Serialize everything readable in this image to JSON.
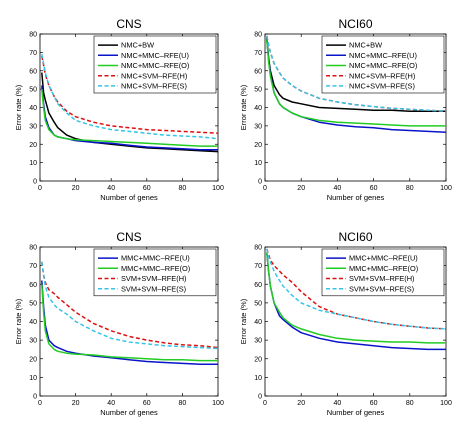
{
  "chart_data": [
    {
      "type": "line",
      "title": "CNS",
      "xlabel": "Number of genes",
      "ylabel": "Error rate (%)",
      "xlim": [
        0,
        100
      ],
      "ylim": [
        0,
        80
      ],
      "xticks": [
        "0",
        "20",
        "40",
        "60",
        "80",
        "100"
      ],
      "yticks": [
        "0",
        "10",
        "20",
        "30",
        "40",
        "50",
        "60",
        "70",
        "80"
      ],
      "legend_position": "top-right",
      "x": [
        1,
        2,
        3,
        5,
        8,
        10,
        15,
        20,
        30,
        40,
        50,
        60,
        70,
        80,
        90,
        100
      ],
      "series": [
        {
          "name": "NMC+BW",
          "color": "#000000",
          "dash": "solid",
          "values": [
            59,
            48,
            44,
            37,
            32,
            29,
            25,
            23,
            21,
            20,
            19,
            18,
            17.5,
            17,
            16.5,
            16
          ]
        },
        {
          "name": "NMC+MMC–RFE(U)",
          "color": "#0a14c8",
          "dash": "solid",
          "values": [
            52,
            42,
            35,
            29,
            25,
            24,
            23,
            22,
            21,
            20.5,
            19.5,
            18.5,
            18,
            17.5,
            17,
            17
          ]
        },
        {
          "name": "NMC+MMC–RFE(O)",
          "color": "#22cc22",
          "dash": "solid",
          "values": [
            50,
            40,
            33,
            28,
            25,
            24,
            23,
            22.5,
            22,
            21.5,
            21,
            20.5,
            20,
            19.5,
            19,
            19
          ]
        },
        {
          "name": "NMC+SVM–RFE(H)",
          "color": "#dd1111",
          "dash": "dashed",
          "values": [
            68,
            63,
            58,
            52,
            46,
            43,
            38,
            35,
            32,
            30,
            29,
            28,
            27.5,
            27,
            26.5,
            26
          ]
        },
        {
          "name": "NMC+SVM–RFE(S)",
          "color": "#33c5e8",
          "dash": "dashed",
          "values": [
            69,
            64,
            59,
            52,
            46,
            42,
            37,
            33,
            30,
            28,
            27,
            26,
            25,
            24.5,
            24,
            23
          ]
        }
      ]
    },
    {
      "type": "line",
      "title": "NCI60",
      "xlabel": "Number of genes",
      "ylabel": "Error rate (%)",
      "xlim": [
        0,
        100
      ],
      "ylim": [
        0,
        80
      ],
      "xticks": [
        "0",
        "20",
        "40",
        "60",
        "80",
        "100"
      ],
      "yticks": [
        "0",
        "10",
        "20",
        "30",
        "40",
        "50",
        "60",
        "70",
        "80"
      ],
      "legend_position": "top-right",
      "x": [
        1,
        2,
        3,
        5,
        8,
        10,
        15,
        20,
        30,
        40,
        50,
        60,
        70,
        80,
        90,
        100
      ],
      "series": [
        {
          "name": "NMC+BW",
          "color": "#000000",
          "dash": "solid",
          "values": [
            78,
            67,
            60,
            52,
            47,
            45,
            43,
            42,
            40,
            39.5,
            39,
            38.5,
            38.5,
            38,
            38,
            38
          ]
        },
        {
          "name": "NMC+MMC–RFE(U)",
          "color": "#0a14c8",
          "dash": "solid",
          "values": [
            77,
            66,
            58,
            48,
            42,
            40,
            37,
            35,
            32,
            30.5,
            29.5,
            29,
            28,
            27.5,
            27,
            26.5
          ]
        },
        {
          "name": "NMC+MMC–RFE(O)",
          "color": "#22cc22",
          "dash": "solid",
          "values": [
            77,
            65,
            57,
            48,
            42,
            40,
            37,
            35,
            33,
            32,
            31.5,
            31,
            30.5,
            30,
            30,
            30
          ]
        },
        {
          "name": "NMC+SVM–RFE(H)",
          "color": "#dd1111",
          "dash": "dashed",
          "values": [
            79,
            74,
            70,
            64,
            59,
            56,
            52,
            49,
            45,
            43,
            41.5,
            40.5,
            39.5,
            39,
            38.5,
            38
          ]
        },
        {
          "name": "NMC+SVM–RFE(S)",
          "color": "#33c5e8",
          "dash": "dashed",
          "values": [
            79,
            74,
            70,
            64,
            59,
            56,
            52,
            49,
            45,
            43,
            41.5,
            40.5,
            39.5,
            39,
            38.5,
            38
          ]
        }
      ]
    },
    {
      "type": "line",
      "title": "CNS",
      "xlabel": "Number of genes",
      "ylabel": "Error rate (%)",
      "xlim": [
        0,
        100
      ],
      "ylim": [
        0,
        80
      ],
      "xticks": [
        "0",
        "20",
        "40",
        "60",
        "80",
        "100"
      ],
      "yticks": [
        "0",
        "10",
        "20",
        "30",
        "40",
        "50",
        "60",
        "70",
        "80"
      ],
      "legend_position": "top-right",
      "x": [
        1,
        2,
        3,
        5,
        8,
        10,
        15,
        20,
        30,
        40,
        50,
        60,
        70,
        80,
        90,
        100
      ],
      "series": [
        {
          "name": "MMC+MMC–RFE(U)",
          "color": "#0a14c8",
          "dash": "solid",
          "values": [
            62,
            48,
            38,
            30,
            27,
            26,
            24,
            23,
            21.5,
            20.5,
            19.5,
            18.5,
            18,
            17.5,
            17,
            17
          ]
        },
        {
          "name": "MMC+MMC–RFE(O)",
          "color": "#22cc22",
          "dash": "solid",
          "values": [
            60,
            45,
            35,
            28,
            25,
            24,
            23,
            22.5,
            22,
            21,
            20.5,
            20,
            19.5,
            19.5,
            19,
            19
          ]
        },
        {
          "name": "SVM+SVM–RFE(H)",
          "color": "#dd1111",
          "dash": "dashed",
          "values": [
            72,
            65,
            61,
            57,
            55,
            53,
            49,
            45,
            39,
            35,
            32,
            30,
            28.5,
            27.5,
            27,
            26
          ]
        },
        {
          "name": "SVM+SVM–RFE(S)",
          "color": "#33c5e8",
          "dash": "dashed",
          "values": [
            72,
            65,
            59,
            53,
            49,
            47,
            44,
            40,
            35,
            31,
            29,
            28,
            27,
            26.5,
            26,
            25.5
          ]
        }
      ]
    },
    {
      "type": "line",
      "title": "NCI60",
      "xlabel": "Number of genes",
      "ylabel": "Error rate (%)",
      "xlim": [
        0,
        100
      ],
      "ylim": [
        0,
        80
      ],
      "xticks": [
        "0",
        "20",
        "40",
        "60",
        "80",
        "100"
      ],
      "yticks": [
        "0",
        "10",
        "20",
        "30",
        "40",
        "50",
        "60",
        "70",
        "80"
      ],
      "legend_position": "top-right",
      "x": [
        1,
        2,
        3,
        5,
        8,
        10,
        15,
        20,
        30,
        40,
        50,
        60,
        70,
        80,
        90,
        100
      ],
      "series": [
        {
          "name": "MMC+MMC–RFE(U)",
          "color": "#0a14c8",
          "dash": "solid",
          "values": [
            77,
            67,
            59,
            50,
            43,
            41,
            37,
            34,
            31,
            29,
            28,
            27,
            26,
            25.5,
            25,
            25
          ]
        },
        {
          "name": "MMC+MMC–RFE(O)",
          "color": "#22cc22",
          "dash": "solid",
          "values": [
            77,
            67,
            59,
            50,
            45,
            42,
            38,
            36,
            33,
            31,
            30,
            29.5,
            29,
            29,
            28.5,
            28.5
          ]
        },
        {
          "name": "SVM+SVM–RFE(H)",
          "color": "#dd1111",
          "dash": "dashed",
          "values": [
            79,
            76,
            73,
            70,
            67,
            65,
            61,
            56,
            48,
            44,
            42,
            40,
            38.5,
            37.5,
            36.5,
            36
          ]
        },
        {
          "name": "SVM+SVM–RFE(S)",
          "color": "#33c5e8",
          "dash": "dashed",
          "values": [
            79,
            75,
            72,
            67,
            62,
            59,
            54,
            50,
            46,
            44,
            42,
            40,
            38.5,
            37.5,
            36.5,
            36
          ]
        }
      ]
    }
  ]
}
